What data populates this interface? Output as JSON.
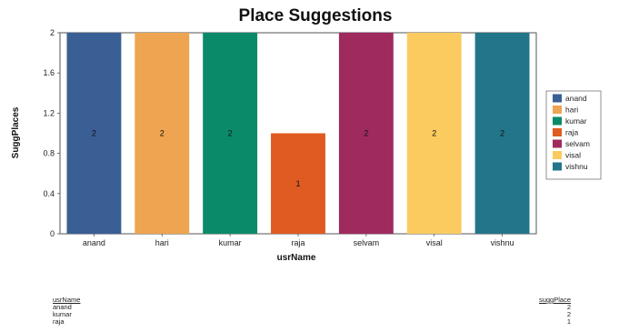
{
  "chart_data": {
    "type": "bar",
    "title": "Place Suggestions",
    "xlabel": "usrName",
    "ylabel": "SuggPlaces",
    "categories": [
      "anand",
      "hari",
      "kumar",
      "raja",
      "selvam",
      "visal",
      "vishnu"
    ],
    "values": [
      2,
      2,
      2,
      1,
      2,
      2,
      2
    ],
    "data_labels": [
      "2",
      "2",
      "2",
      "1",
      "2",
      "2",
      "2"
    ],
    "colors": [
      "#3a5f95",
      "#eea450",
      "#0b8a6a",
      "#df5b21",
      "#9e2a5e",
      "#fbcb60",
      "#23758a"
    ],
    "ylim": [
      0,
      2
    ],
    "yticks": [
      "0",
      "0.4",
      "0.8",
      "1.2",
      "1.6",
      "2"
    ],
    "ytick_values": [
      0,
      0.4,
      0.8,
      1.2,
      1.6,
      2
    ],
    "grid": false,
    "legend": {
      "placement": "right",
      "entries": [
        "anand",
        "hari",
        "kumar",
        "raja",
        "selvam",
        "visal",
        "vishnu"
      ]
    }
  },
  "summary_table": {
    "header_name": "usrName",
    "header_value": "suggPlace",
    "rows": [
      {
        "name": "anand",
        "value": "2"
      },
      {
        "name": "kumar",
        "value": "2"
      },
      {
        "name": "raja",
        "value": "1"
      }
    ]
  }
}
